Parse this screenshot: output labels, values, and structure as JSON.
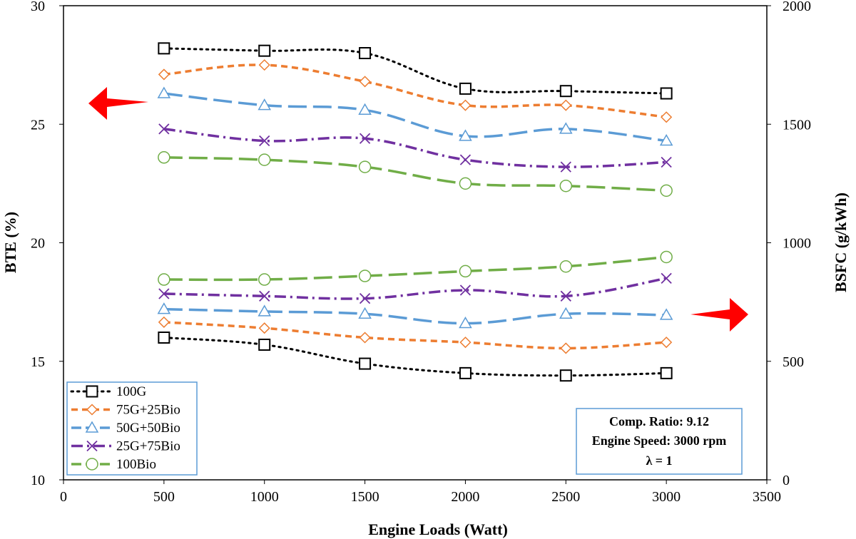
{
  "chart_data": {
    "type": "line",
    "xlabel": "Engine Loads (Watt)",
    "ylabel": "BTE (%)",
    "y2label": "BSFC (g/kWh)",
    "xlim": [
      0,
      3500
    ],
    "ylim": [
      10,
      30
    ],
    "y2lim": [
      0,
      2000
    ],
    "x_ticks": [
      "0",
      "500",
      "1000",
      "1500",
      "2000",
      "2500",
      "3000",
      "3500"
    ],
    "y_ticks": [
      "10",
      "15",
      "20",
      "25",
      "30"
    ],
    "y2_ticks": [
      "0",
      "500",
      "1000",
      "1500",
      "2000"
    ],
    "x": [
      500,
      1000,
      1500,
      2000,
      2500,
      3000
    ],
    "series": [
      {
        "name": "100G",
        "color": "#000000",
        "marker": "square",
        "dash": "dotted",
        "bte": [
          28.2,
          28.1,
          28.0,
          26.5,
          26.4,
          26.3
        ],
        "bsfc": [
          600,
          570,
          490,
          450,
          440,
          450
        ]
      },
      {
        "name": "75G+25Bio",
        "color": "#ED7D31",
        "marker": "diamond",
        "dash": "short-dash",
        "bte": [
          27.1,
          27.5,
          26.8,
          25.8,
          25.8,
          25.3
        ],
        "bsfc": [
          665,
          640,
          600,
          580,
          555,
          580
        ]
      },
      {
        "name": "50G+50Bio",
        "color": "#5B9BD5",
        "marker": "triangle",
        "dash": "long-dash",
        "bte": [
          26.3,
          25.8,
          25.6,
          24.5,
          24.8,
          24.3
        ],
        "bsfc": [
          720,
          710,
          700,
          660,
          700,
          695
        ]
      },
      {
        "name": "25G+75Bio",
        "color": "#7030A0",
        "marker": "x",
        "dash": "dash-dot",
        "bte": [
          24.8,
          24.3,
          24.4,
          23.5,
          23.2,
          23.4
        ],
        "bsfc": [
          785,
          775,
          765,
          800,
          775,
          850
        ]
      },
      {
        "name": "100Bio",
        "color": "#70AD47",
        "marker": "circle",
        "dash": "long-dash",
        "bte": [
          23.6,
          23.5,
          23.2,
          22.5,
          22.4,
          22.2
        ],
        "bsfc": [
          845,
          845,
          860,
          880,
          900,
          940
        ]
      }
    ],
    "legend_position": "bottom-left",
    "annotation": {
      "line1": "Comp. Ratio: 9.12",
      "line2": "Engine Speed: 3000 rpm",
      "line3": "λ = 1",
      "position": "bottom-right"
    },
    "arrows": {
      "left": "points left toward BTE axis (upper curve group)",
      "right": "points right toward BSFC axis (lower curve group)",
      "color": "#FF0000"
    }
  }
}
